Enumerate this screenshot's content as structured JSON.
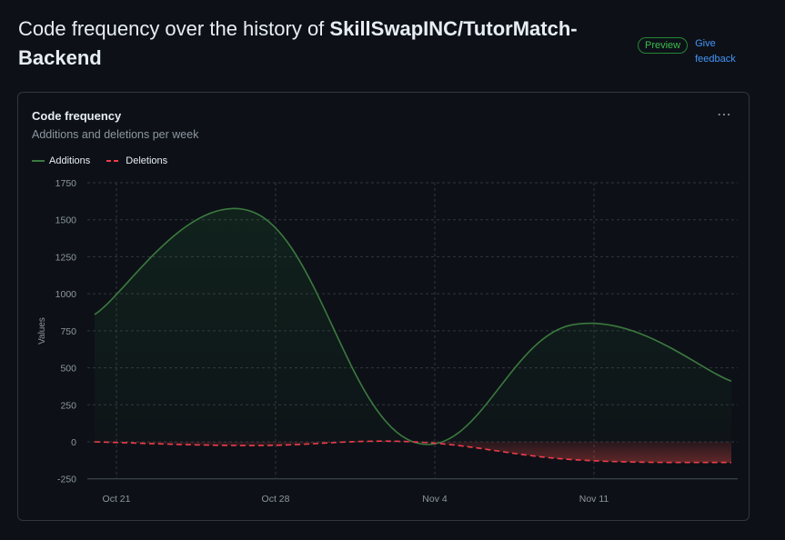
{
  "header": {
    "title_prefix": "Code frequency over the history of ",
    "repo": "SkillSwapINC/TutorMatch-Backend",
    "badge": "Preview",
    "feedback": "Give feedback"
  },
  "card": {
    "title": "Code frequency",
    "subtitle": "Additions and deletions per week",
    "menu_icon": "kebab-horizontal-icon"
  },
  "colors": {
    "additions": "#3b7a3f",
    "deletions": "#f03c4b",
    "grid": "#30363d",
    "text_muted": "#8d96a0"
  },
  "chart_data": {
    "type": "area",
    "title": "Code frequency",
    "subtitle": "Additions and deletions per week",
    "ylabel": "Values",
    "xlabel": "",
    "ylim": [
      -250,
      1750
    ],
    "yticks": [
      -250,
      0,
      250,
      500,
      750,
      1000,
      1250,
      1500,
      1750
    ],
    "x_ticks": [
      "Oct 21",
      "Oct 28",
      "Nov 4",
      "Nov 11"
    ],
    "grid": true,
    "legend_position": "top-left",
    "x": [
      "Oct 20",
      "Oct 27",
      "Nov 3",
      "Nov 10",
      "Nov 17"
    ],
    "series": [
      {
        "name": "Additions",
        "values": [
          860,
          1550,
          0,
          790,
          410
        ]
      },
      {
        "name": "Deletions",
        "values": [
          0,
          -25,
          0,
          -120,
          -140
        ]
      }
    ]
  }
}
